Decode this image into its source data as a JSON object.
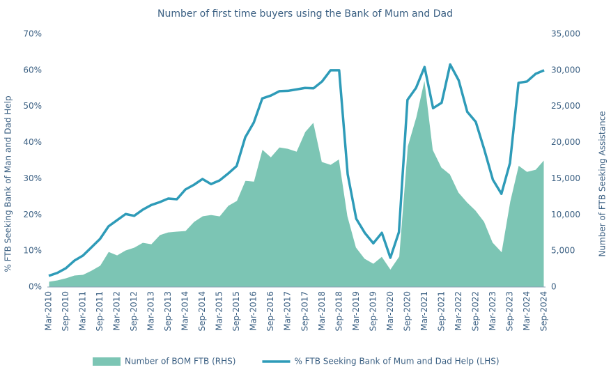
{
  "chart_data": {
    "type": "combo",
    "title": "Number of first time buyers using the Bank of Mum and Dad",
    "y_label": "% FTB Seeking Bank of Man and Dad Help",
    "y2_label": "Number of FTB Seeking Assistance",
    "categories": [
      "Mar-2010",
      null,
      "Sep-2010",
      null,
      "Mar-2011",
      null,
      "Sep-2011",
      null,
      "Mar-2012",
      null,
      "Sep-2012",
      null,
      "Mar-2013",
      null,
      "Sep-2013",
      null,
      "Mar-2014",
      null,
      "Sep-2014",
      null,
      "Mar-2015",
      null,
      "Sep-2015",
      null,
      "Mar-2016",
      null,
      "Sep-2016",
      null,
      "Mar-2017",
      null,
      "Sep-2017",
      null,
      "Mar-2018",
      null,
      "Sep-2018",
      null,
      "Mar-2019",
      null,
      "Sep-2019",
      null,
      "Mar-2020",
      null,
      "Sep-2020",
      null,
      "Mar-2021",
      null,
      "Sep-2021",
      null,
      "Mar-2022",
      null,
      "Sep-2022",
      null,
      "Mar-2023",
      null,
      "Sep-2023",
      null,
      "Mar-2024",
      null,
      "Sep-2024"
    ],
    "series": [
      {
        "name": "Number of BOM FTB (RHS)",
        "type": "area",
        "axis": "y2",
        "color": "#7cc5b4",
        "values": [
          770,
          960,
          1250,
          1640,
          1730,
          2310,
          2990,
          4910,
          4430,
          5110,
          5490,
          6170,
          5970,
          7230,
          7610,
          7710,
          7800,
          9060,
          9830,
          10020,
          9830,
          11270,
          11950,
          14740,
          14640,
          19080,
          18020,
          19370,
          19170,
          18790,
          21480,
          22830,
          17340,
          16960,
          17730,
          9830,
          5490,
          3950,
          3280,
          4240,
          2500,
          4240,
          19460,
          23510,
          28810,
          18980,
          16570,
          15610,
          13100,
          11750,
          10600,
          9060,
          6170,
          4910,
          11850,
          16860,
          15990,
          16280,
          17630
        ]
      },
      {
        "name": "% FTB Seeking Bank of Mum and Dad Help (LHS)",
        "type": "line",
        "axis": "y",
        "color": "#2e9bb8",
        "values": [
          3.1,
          3.9,
          5.2,
          7.3,
          8.7,
          11,
          13.3,
          16.8,
          18.5,
          20.2,
          19.7,
          21.4,
          22.7,
          23.5,
          24.5,
          24.3,
          27,
          28.3,
          29.9,
          28.5,
          29.5,
          31.4,
          33.5,
          41.4,
          45.5,
          52.2,
          53,
          54.2,
          54.3,
          54.7,
          55.1,
          55,
          56.9,
          60,
          60,
          31.2,
          18.9,
          15,
          12.1,
          15,
          8.1,
          15.2,
          51.8,
          55.1,
          60.9,
          49.5,
          51,
          61.6,
          57.2,
          48.5,
          45.7,
          38,
          29.7,
          25.8,
          34.3,
          56.5,
          56.9,
          59,
          60
        ]
      }
    ],
    "ylim": [
      0,
      70
    ],
    "yticks": [
      {
        "value": 0,
        "label": "0%"
      },
      {
        "value": 10,
        "label": "10%"
      },
      {
        "value": 20,
        "label": "20%"
      },
      {
        "value": 30,
        "label": "30%"
      },
      {
        "value": 40,
        "label": "40%"
      },
      {
        "value": 50,
        "label": "50%"
      },
      {
        "value": 60,
        "label": "60%"
      },
      {
        "value": 70,
        "label": "70%"
      }
    ],
    "y2lim": [
      0,
      35000
    ],
    "y2ticks": [
      0,
      {
        "value": 5000,
        "label": "5,000"
      },
      {
        "value": 10000,
        "label": "10,000"
      },
      {
        "value": 15000,
        "label": "15,000"
      },
      {
        "value": 20000,
        "label": "20,000"
      },
      {
        "value": 25000,
        "label": "25,000"
      },
      {
        "value": 30000,
        "label": "30,000"
      },
      {
        "value": 35000,
        "label": "35,000"
      }
    ],
    "grid": false,
    "legend": "bottom"
  }
}
